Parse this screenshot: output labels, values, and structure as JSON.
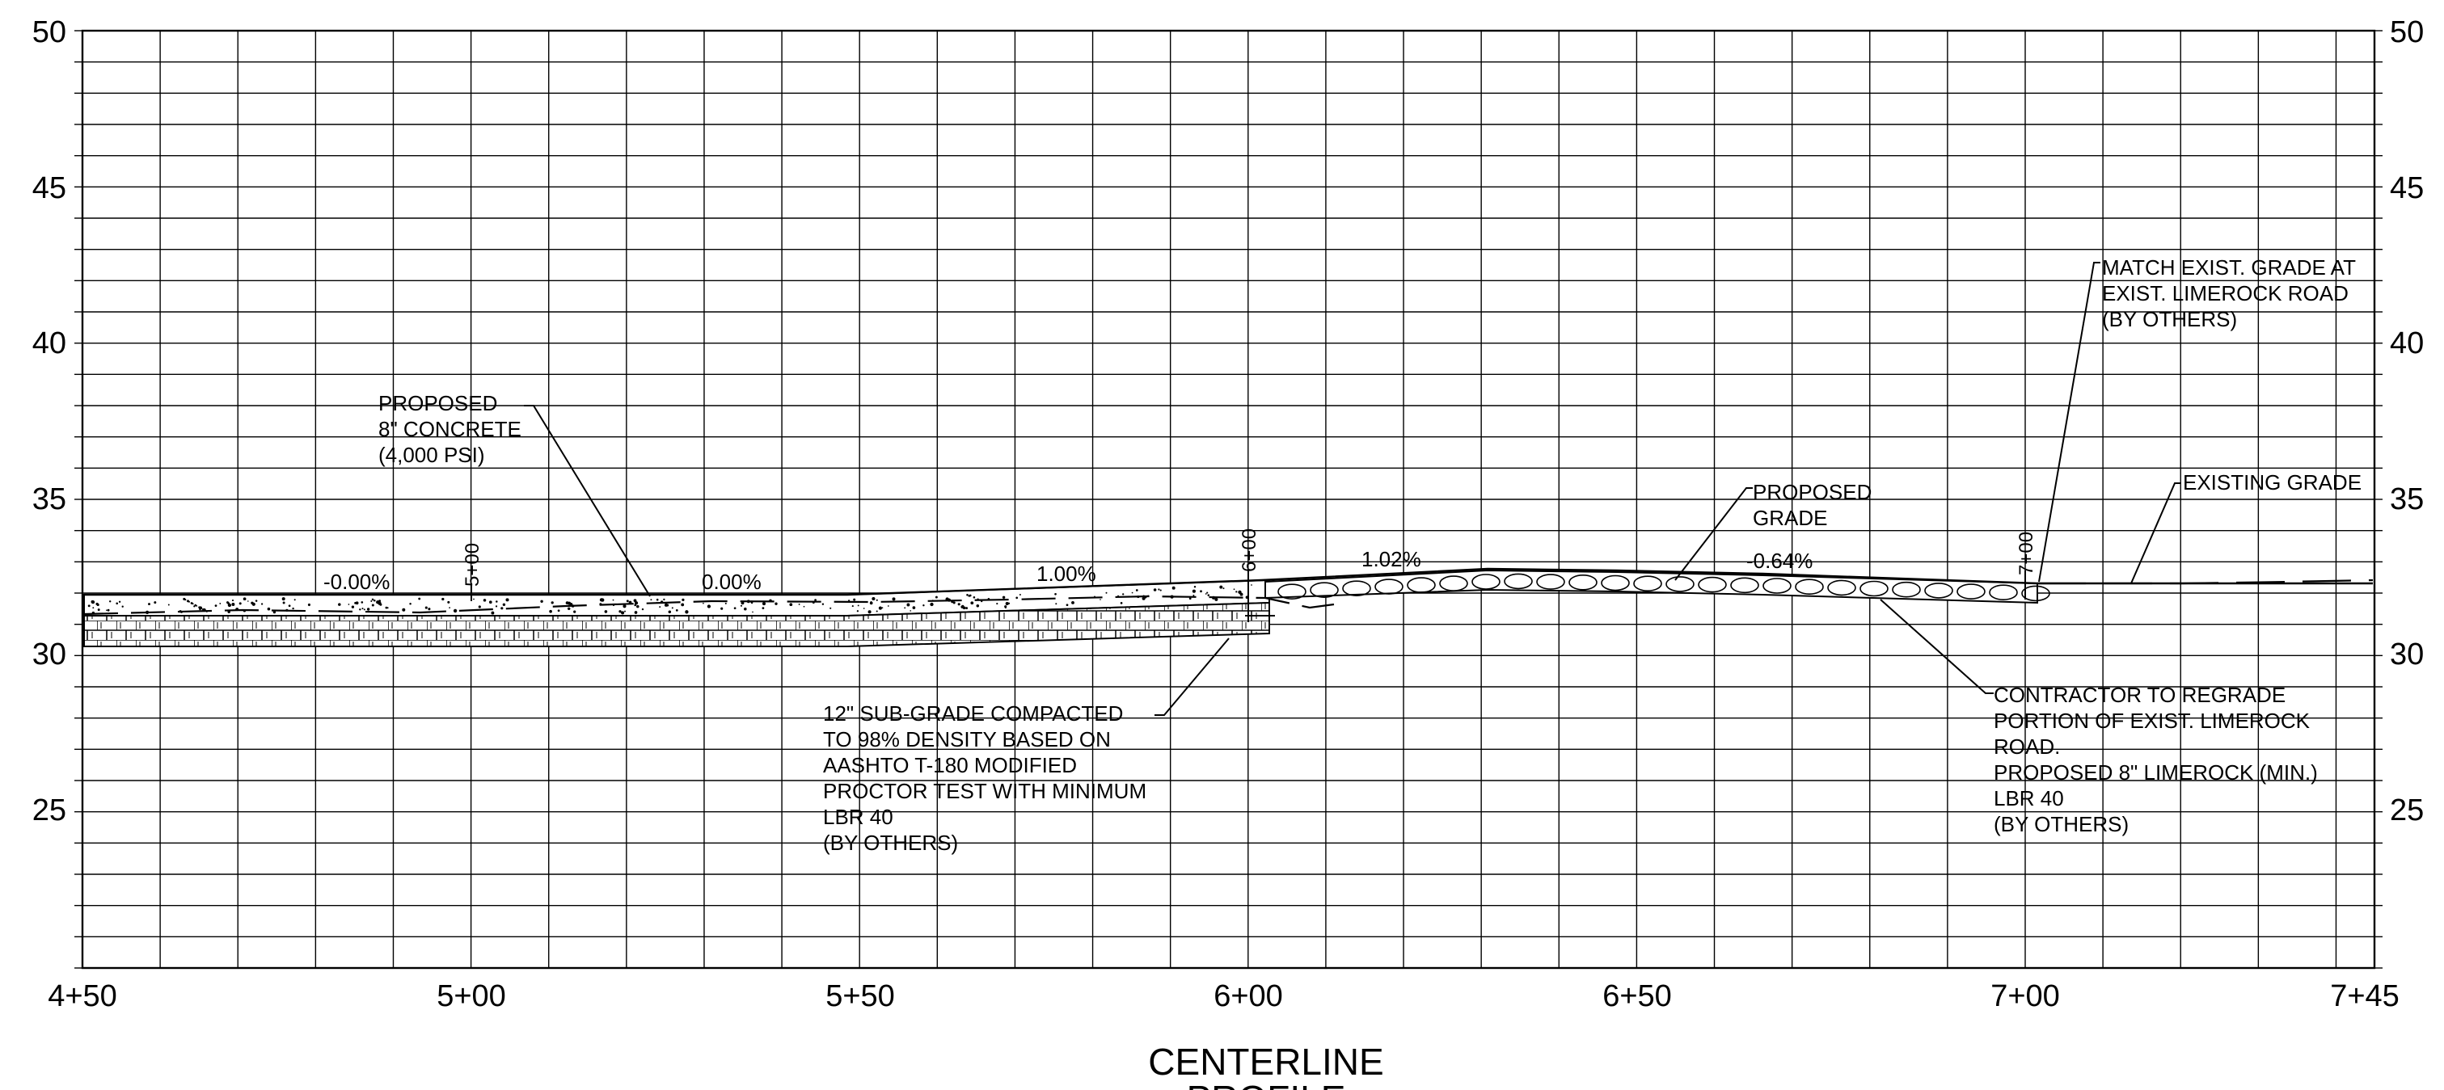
{
  "diagram": {
    "type": "roadway-profile",
    "title": "CENTERLINE",
    "subtitle": "PROFILE",
    "elevation_ticks": [
      "50",
      "45",
      "40",
      "35",
      "30",
      "25"
    ],
    "station_ticks": [
      "4+50",
      "5+00",
      "5+50",
      "6+00",
      "6+50",
      "7+00",
      "7+45"
    ],
    "station_markers": [
      "5+00",
      "6+00",
      "7+00"
    ],
    "grade_labels": [
      "-0.00%",
      "0.00%",
      "1.00%",
      "1.02%",
      "-0.64%"
    ],
    "notes": {
      "concrete": [
        "PROPOSED",
        "8\" CONCRETE",
        "(4,000 PSI)"
      ],
      "subgrade": [
        "12\" SUB-GRADE COMPACTED",
        "TO 98% DENSITY BASED ON",
        "AASHTO T-180 MODIFIED",
        "PROCTOR TEST WITH MINIMUM",
        "LBR 40",
        "(BY OTHERS)"
      ],
      "proposed_grade": [
        "PROPOSED",
        "GRADE"
      ],
      "match_grade": [
        "MATCH EXIST. GRADE AT",
        "EXIST. LIMEROCK ROAD",
        "(BY OTHERS)"
      ],
      "existing_grade": [
        "EXISTING GRADE"
      ],
      "regrade": [
        "CONTRACTOR TO REGRADE",
        "PORTION OF EXIST. LIMEROCK",
        "ROAD.",
        "PROPOSED 8\" LIMEROCK (MIN.)",
        "LBR 40",
        "(BY OTHERS)"
      ]
    }
  }
}
